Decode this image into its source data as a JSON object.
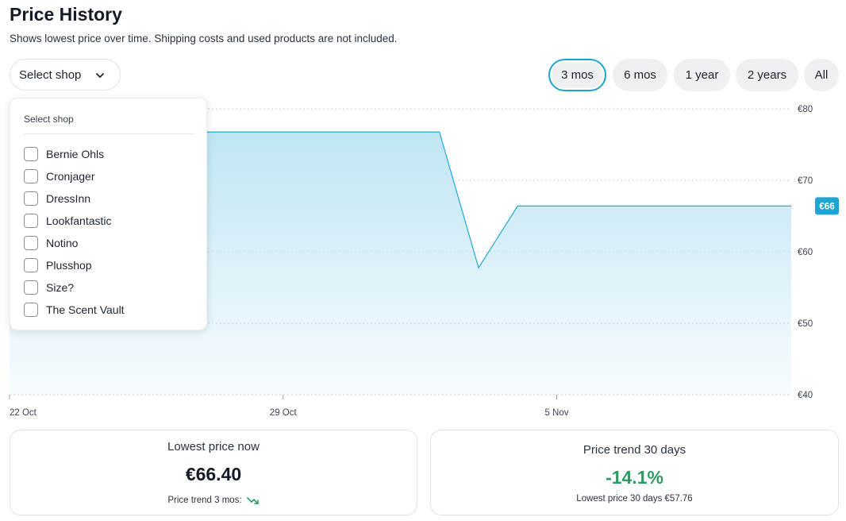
{
  "header": {
    "title": "Price History",
    "subtitle": "Shows lowest price over time. Shipping costs and used products are not included."
  },
  "shop_select": {
    "label": "Select shop",
    "dropdown_title": "Select shop",
    "options": [
      "Bernie Ohls",
      "Cronjager",
      "DressInn",
      "Lookfantastic",
      "Notino",
      "Plusshop",
      "Size?",
      "The Scent Vault"
    ]
  },
  "ranges": [
    "3 mos",
    "6 mos",
    "1 year",
    "2 years",
    "All"
  ],
  "selected_range": "3 mos",
  "chart_data": {
    "type": "area",
    "currency": "€",
    "x": [
      "2023-10-22",
      "2023-11-02",
      "2023-11-03",
      "2023-11-04",
      "2023-11-11"
    ],
    "values": [
      76.75,
      76.75,
      57.76,
      66.4,
      66.4
    ],
    "ylim": [
      40,
      80
    ],
    "yticks": [
      "€80",
      "€70",
      "€60",
      "€50",
      "€40"
    ],
    "xticks": [
      "22 Oct",
      "29 Oct",
      "5 Nov"
    ],
    "current_label": "€66",
    "grid": true
  },
  "cards": {
    "lowest": {
      "label": "Lowest price now",
      "value": "€66.40",
      "trend_label": "Price trend 3 mos:"
    },
    "trend": {
      "label": "Price trend 30 days",
      "value": "-14.1%",
      "foot": "Lowest price 30 days €57.76"
    }
  },
  "colors": {
    "accent": "#1ea6d2",
    "line": "#22a9d6",
    "fill_top": "#bfe6f4",
    "green": "#2e9b63"
  }
}
